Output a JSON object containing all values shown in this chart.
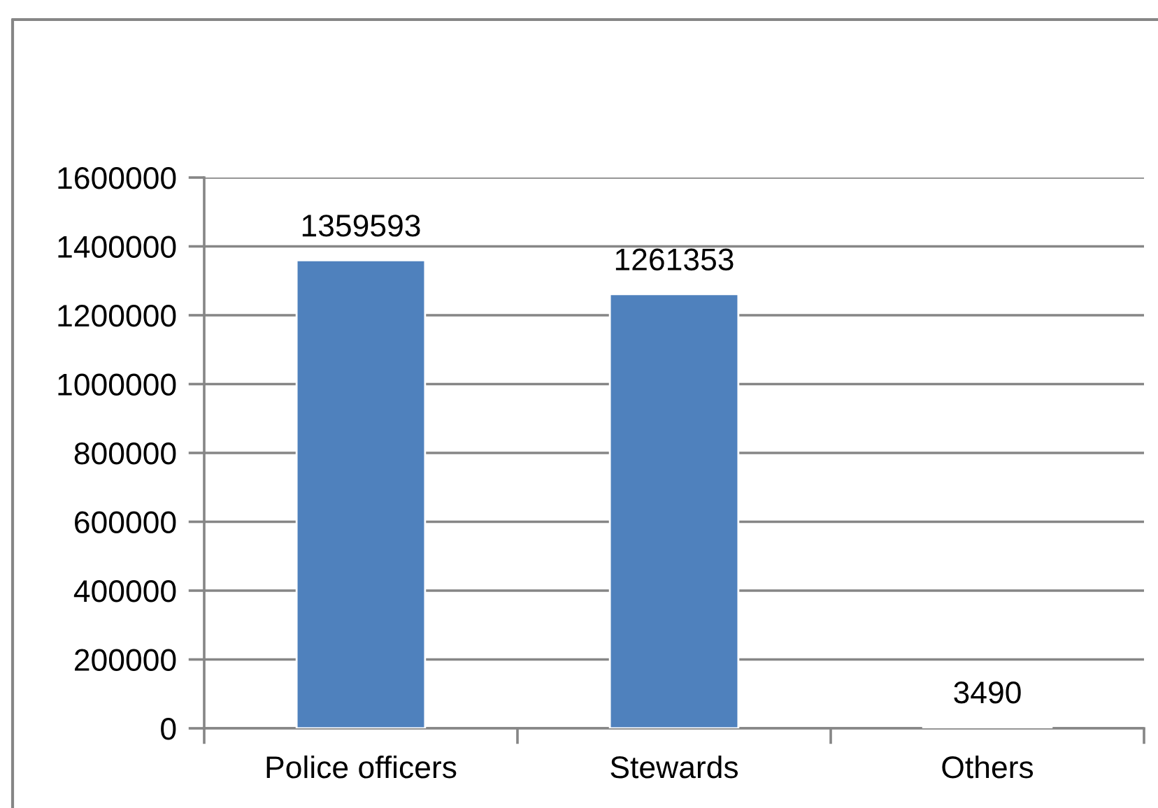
{
  "chart_data": {
    "type": "bar",
    "categories": [
      "Police officers",
      "Stewards",
      "Others"
    ],
    "values": [
      1359593,
      1261353,
      3490
    ],
    "color": "#4f81bd",
    "ylim": [
      0,
      1600000
    ],
    "yticks": [
      0,
      200000,
      400000,
      600000,
      800000,
      1000000,
      1200000,
      1400000,
      1600000
    ],
    "grid": "y",
    "data_labels": true
  }
}
